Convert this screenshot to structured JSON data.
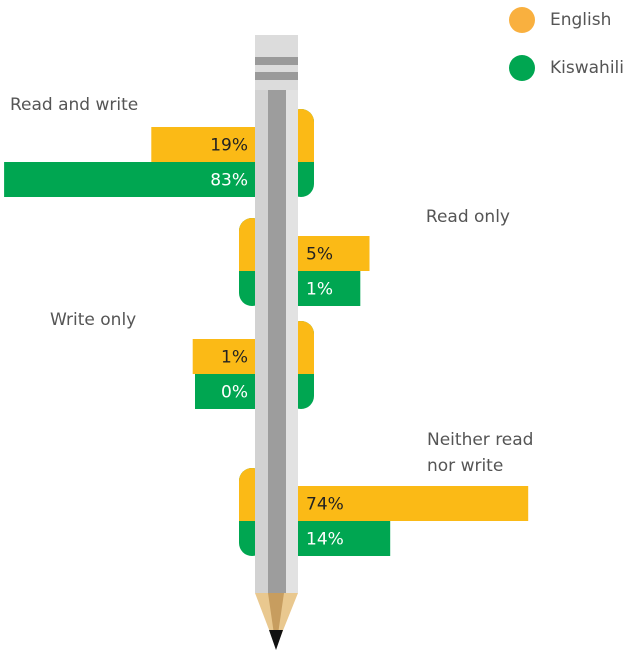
{
  "chart_data": {
    "type": "bar",
    "categories": [
      "Read and write",
      "Read only",
      "Write only",
      "Neither read nor write"
    ],
    "series": [
      {
        "name": "English",
        "color": "#fbba16",
        "values": [
          19,
          5,
          1,
          74
        ],
        "value_labels": [
          "19%",
          "5%",
          "1%",
          "74%"
        ]
      },
      {
        "name": "Kiswahili",
        "color": "#00a651",
        "values": [
          83,
          1,
          0,
          14
        ],
        "value_labels": [
          "83%",
          "1%",
          "0%",
          "14%"
        ]
      }
    ]
  }
}
